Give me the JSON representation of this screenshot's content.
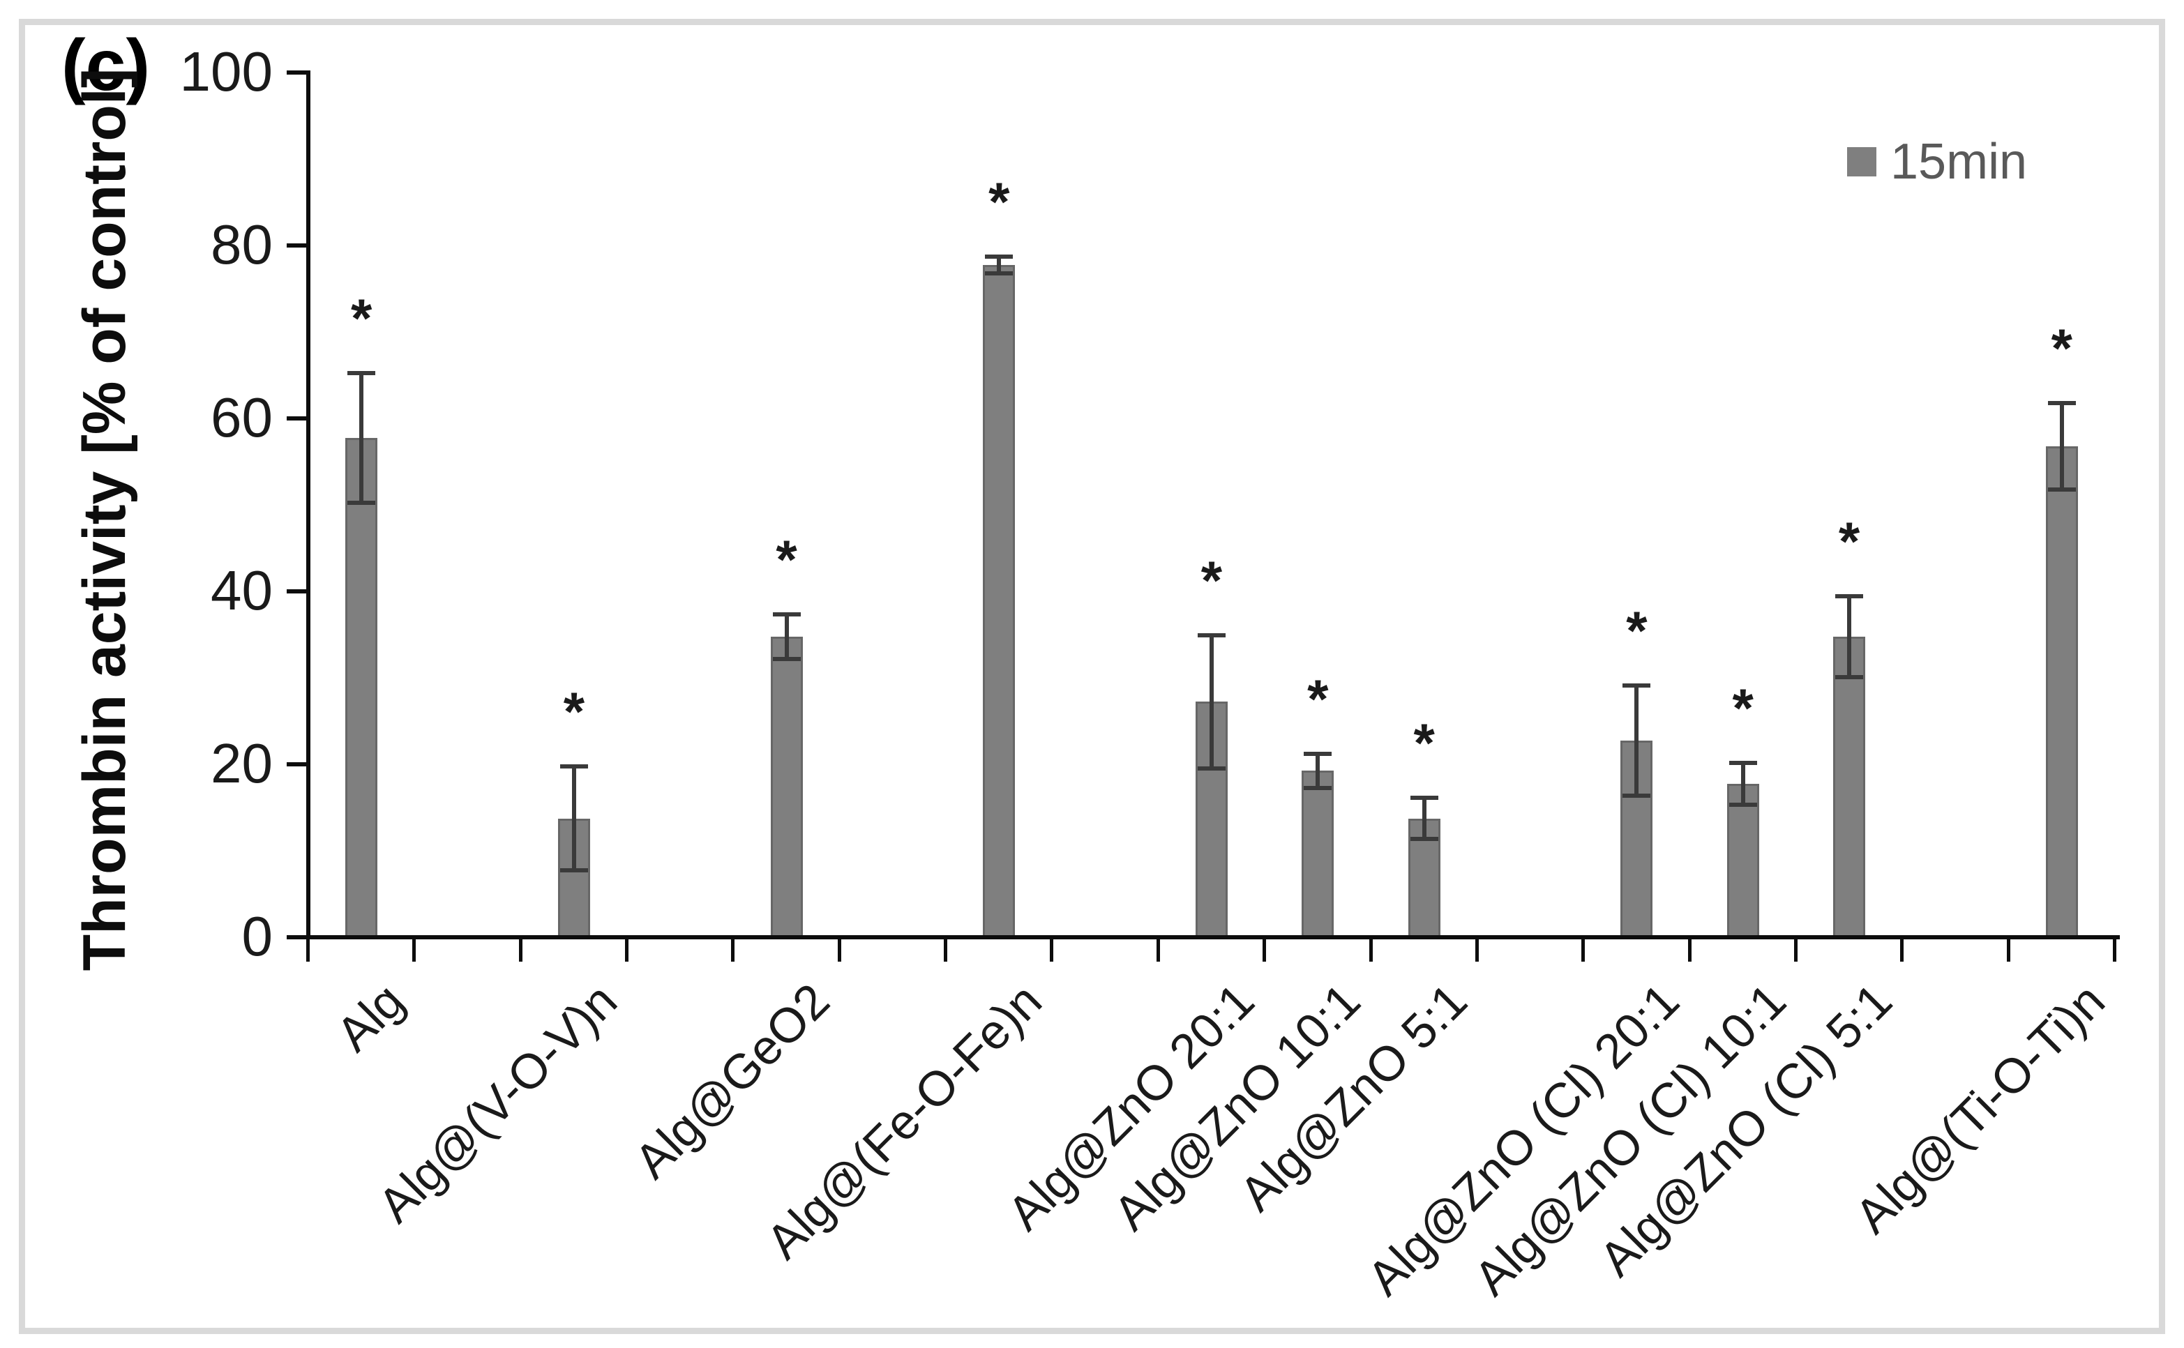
{
  "panel_label": "(c)",
  "legend": {
    "label": "15min",
    "swatch_color": "#7f7f7f"
  },
  "chart_data": {
    "type": "bar",
    "title": "",
    "xlabel": "",
    "ylabel": "Thrombin activity [% of control]",
    "ylim": [
      0,
      100
    ],
    "yticks": [
      0,
      20,
      40,
      60,
      80,
      100
    ],
    "grid": false,
    "legend_position": "top-right",
    "series_name": "15min",
    "bar_color": "#7f7f7f",
    "bar_edge_color": "#676767",
    "error_bar_color": "#3a3a3a",
    "axis_color": "#0d0d0d",
    "categories": [
      "Alg",
      "Alg@(V-O-V)n",
      "Alg@GeO2",
      "Alg@(Fe-O-Fe)n",
      "Alg@ZnO 20:1",
      "Alg@ZnO 10:1",
      "Alg@ZnO 5:1",
      "Alg@ZnO (Cl) 20:1",
      "Alg@ZnO (Cl) 10:1",
      "Alg@ZnO (Cl) 5:1",
      "Alg@(Ti-O-Ti)n"
    ],
    "values": [
      57.5,
      13.5,
      34.5,
      77.5,
      27,
      19,
      13.5,
      22.5,
      17.5,
      34.5,
      56.5
    ],
    "errors": [
      7.5,
      6,
      2.6,
      1,
      7.7,
      2,
      2.4,
      6.4,
      2.4,
      4.7,
      5
    ],
    "significance": [
      "*",
      "*",
      "*",
      "*",
      "*",
      "*",
      "*",
      "*",
      "*",
      "*",
      "*"
    ],
    "layout_hint": {
      "total_slots": 17,
      "category_slots": [
        0,
        2,
        4,
        6,
        8,
        9,
        10,
        12,
        13,
        14,
        16
      ]
    }
  }
}
